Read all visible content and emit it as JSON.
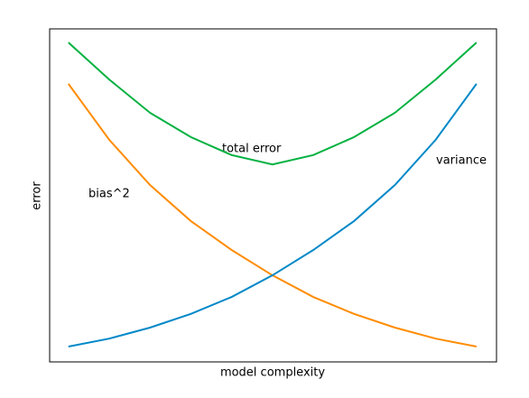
{
  "chart_data": {
    "type": "line",
    "x_label": "model complexity",
    "y_label": "error",
    "x": [
      0,
      0.1,
      0.2,
      0.3,
      0.4,
      0.5,
      0.6,
      0.7,
      0.8,
      0.9,
      1.0
    ],
    "xlim": [
      -0.046,
      1.049
    ],
    "ylim": [
      0,
      10
    ],
    "series": [
      {
        "name": "total error",
        "color": "#00b140",
        "values": [
          9.59,
          8.48,
          7.48,
          6.75,
          6.21,
          5.93,
          6.21,
          6.75,
          7.48,
          8.48,
          9.59
        ]
      },
      {
        "name": "bias^2",
        "color": "#ff8c00",
        "values": [
          8.35,
          6.67,
          5.31,
          4.23,
          3.36,
          2.6,
          1.95,
          1.44,
          1.03,
          0.7,
          0.46
        ]
      },
      {
        "name": "variance",
        "color": "#0088c8",
        "values": [
          0.46,
          0.7,
          1.03,
          1.44,
          1.95,
          2.6,
          3.36,
          4.23,
          5.31,
          6.67,
          8.35
        ]
      }
    ]
  }
}
